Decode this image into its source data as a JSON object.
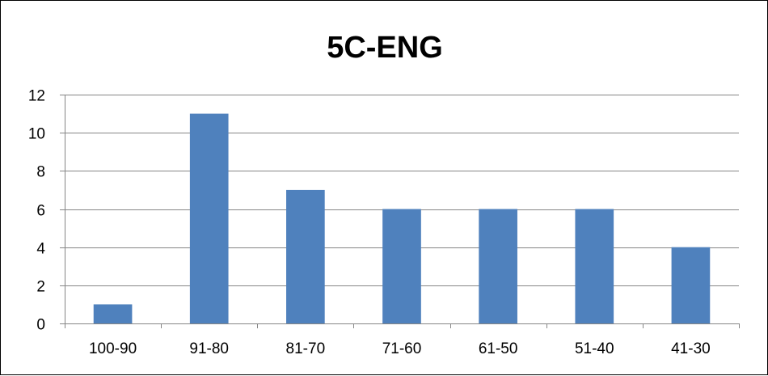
{
  "chart_data": {
    "type": "bar",
    "title": "5C-ENG",
    "categories": [
      "100-90",
      "91-80",
      "81-70",
      "71-60",
      "61-50",
      "51-40",
      "41-30"
    ],
    "values": [
      1,
      11,
      7,
      6,
      6,
      6,
      4
    ],
    "ylim": [
      0,
      12
    ],
    "yticks": [
      0,
      2,
      4,
      6,
      8,
      10,
      12
    ],
    "grid": true,
    "legend": "none",
    "colors": {
      "bar": "#4F81BD",
      "grid": "#868686",
      "axis": "#868686"
    }
  }
}
